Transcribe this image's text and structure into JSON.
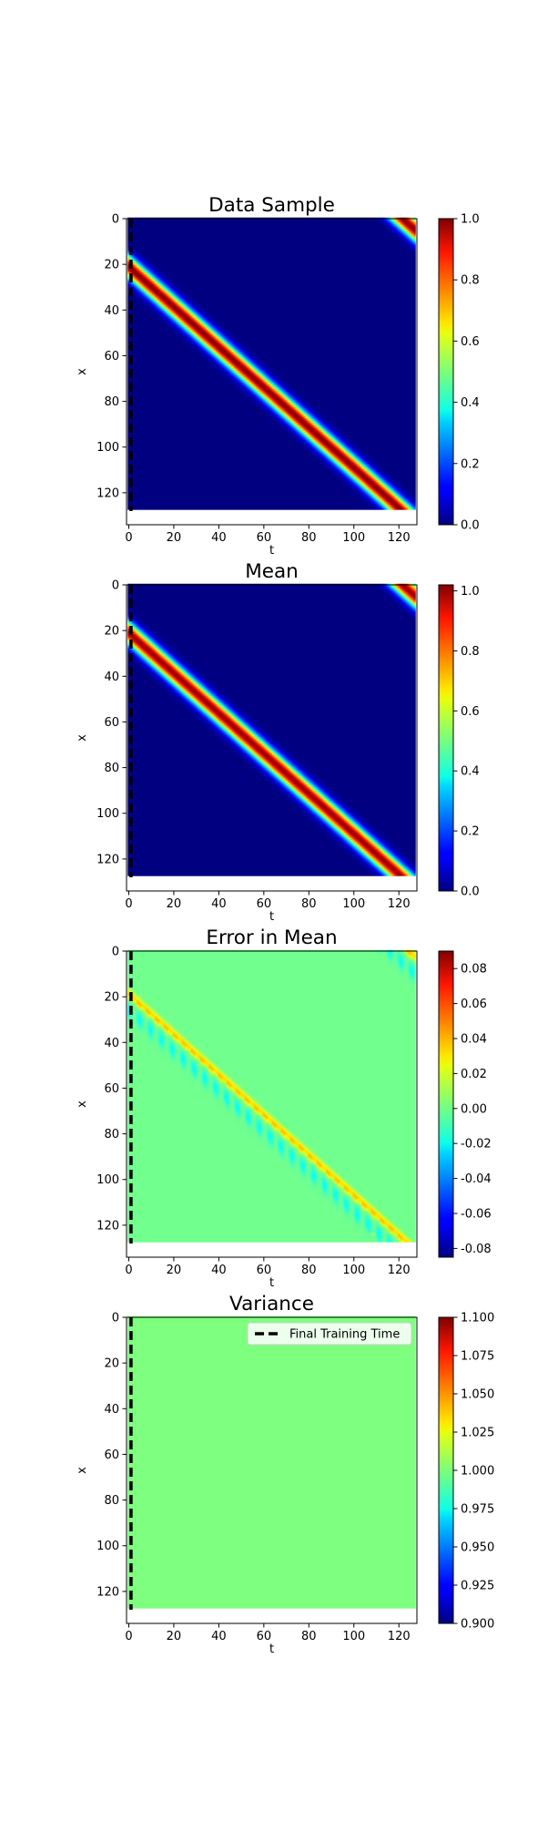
{
  "chart_data": [
    {
      "type": "heatmap",
      "title": "Data Sample",
      "xlabel": "t",
      "ylabel": "x",
      "xlim": [
        -1,
        128
      ],
      "ylim": [
        134,
        0
      ],
      "xticks": [
        0,
        20,
        40,
        60,
        80,
        100,
        120
      ],
      "yticks": [
        0,
        20,
        40,
        60,
        80,
        100,
        120
      ],
      "field": "travelling_pulse",
      "final_training_time": 1,
      "colorbar": {
        "min": 0.0,
        "max": 1.0,
        "ticks": [
          "0.0",
          "0.2",
          "0.4",
          "0.6",
          "0.8",
          "1.0"
        ]
      }
    },
    {
      "type": "heatmap",
      "title": "Mean",
      "xlabel": "t",
      "ylabel": "x",
      "xlim": [
        -1,
        128
      ],
      "ylim": [
        134,
        0
      ],
      "xticks": [
        0,
        20,
        40,
        60,
        80,
        100,
        120
      ],
      "yticks": [
        0,
        20,
        40,
        60,
        80,
        100,
        120
      ],
      "field": "travelling_pulse",
      "final_training_time": 1,
      "colorbar": {
        "min": 0.0,
        "max": 1.02,
        "ticks": [
          "0.0",
          "0.2",
          "0.4",
          "0.6",
          "0.8",
          "1.0"
        ]
      }
    },
    {
      "type": "heatmap",
      "title": "Error in Mean",
      "xlabel": "t",
      "ylabel": "x",
      "xlim": [
        -1,
        128
      ],
      "ylim": [
        134,
        0
      ],
      "xticks": [
        0,
        20,
        40,
        60,
        80,
        100,
        120
      ],
      "yticks": [
        0,
        20,
        40,
        60,
        80,
        100,
        120
      ],
      "field": "pulse_error",
      "final_training_time": 1,
      "colorbar": {
        "min": -0.085,
        "max": 0.09,
        "ticks": [
          "-0.08",
          "-0.06",
          "-0.04",
          "-0.02",
          "0.00",
          "0.02",
          "0.04",
          "0.06",
          "0.08"
        ]
      }
    },
    {
      "type": "heatmap",
      "title": "Variance",
      "xlabel": "t",
      "ylabel": "x",
      "xlim": [
        -1,
        128
      ],
      "ylim": [
        134,
        0
      ],
      "xticks": [
        0,
        20,
        40,
        60,
        80,
        100,
        120
      ],
      "yticks": [
        0,
        20,
        40,
        60,
        80,
        100,
        120
      ],
      "field": "constant",
      "constant_value": 1.0,
      "final_training_time": 1,
      "legend": {
        "label": "Final Training Time",
        "placement": "top-right"
      },
      "colorbar": {
        "min": 0.9,
        "max": 1.1,
        "ticks": [
          "0.900",
          "0.925",
          "0.950",
          "0.975",
          "1.000",
          "1.025",
          "1.050",
          "1.075",
          "1.100"
        ]
      }
    }
  ]
}
